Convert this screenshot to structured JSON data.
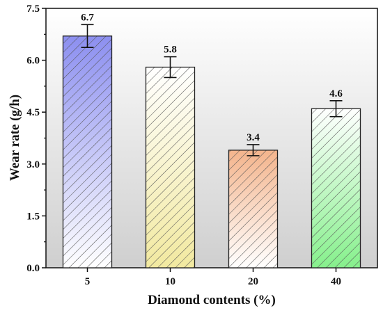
{
  "chart_data": {
    "type": "bar",
    "categories": [
      "5",
      "10",
      "20",
      "40"
    ],
    "values": [
      6.7,
      5.8,
      3.4,
      4.6
    ],
    "errors": [
      0.33,
      0.3,
      0.16,
      0.23
    ],
    "value_labels": [
      "6.7",
      "5.8",
      "3.4",
      "4.6"
    ],
    "xlabel": "Diamond contents (%)",
    "ylabel": "Wear rate (g/h)",
    "ylim": [
      0,
      7.5
    ],
    "yticks": [
      "0.0",
      "1.5",
      "3.0",
      "4.5",
      "6.0",
      "7.5"
    ],
    "grid": false,
    "legend": "none",
    "bar_colors": [
      "#8c8ff0",
      "#f2e9a0",
      "#f4b48c",
      "#86f08c"
    ],
    "background_gradient": [
      "#ffffff",
      "#d0d0d0"
    ]
  }
}
